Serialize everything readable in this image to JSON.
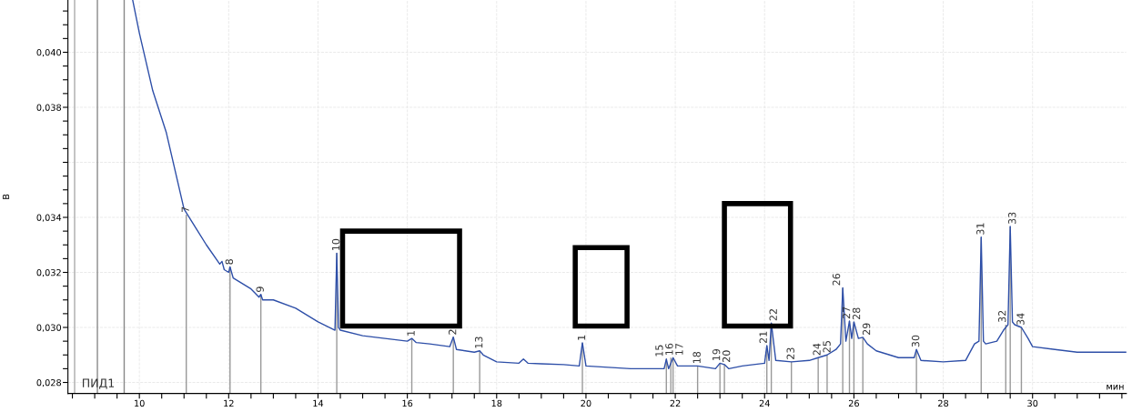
{
  "chart_data": {
    "type": "line",
    "ylabel": "В",
    "xlabel": "мин",
    "xlim": [
      8.4,
      32.1
    ],
    "ylim": [
      0.0276,
      0.0419
    ],
    "xticks": [
      {
        "value": 8.5,
        "label": null
      },
      {
        "value": 9,
        "label": null
      },
      {
        "value": 9.5,
        "label": null
      },
      10,
      {
        "value": 10.5,
        "label": null
      },
      {
        "value": 11,
        "label": null
      },
      {
        "value": 11.5,
        "label": null
      },
      12,
      {
        "value": 12.5,
        "label": null
      },
      {
        "value": 13,
        "label": null
      },
      {
        "value": 13.5,
        "label": null
      },
      14,
      {
        "value": 14.5,
        "label": null
      },
      {
        "value": 15,
        "label": null
      },
      {
        "value": 15.5,
        "label": null
      },
      16,
      {
        "value": 16.5,
        "label": null
      },
      {
        "value": 17,
        "label": null
      },
      {
        "value": 17.5,
        "label": null
      },
      18,
      {
        "value": 18.5,
        "label": null
      },
      {
        "value": 19,
        "label": null
      },
      {
        "value": 19.5,
        "label": null
      },
      20,
      {
        "value": 20.5,
        "label": null
      },
      {
        "value": 21,
        "label": null
      },
      {
        "value": 21.5,
        "label": null
      },
      22,
      {
        "value": 22.5,
        "label": null
      },
      {
        "value": 23,
        "label": null
      },
      {
        "value": 23.5,
        "label": null
      },
      24,
      {
        "value": 24.5,
        "label": null
      },
      {
        "value": 25,
        "label": null
      },
      {
        "value": 25.5,
        "label": null
      },
      26,
      {
        "value": 26.5,
        "label": null
      },
      {
        "value": 27,
        "label": null
      },
      {
        "value": 27.5,
        "label": null
      },
      28,
      {
        "value": 28.5,
        "label": null
      },
      {
        "value": 29,
        "label": null
      },
      {
        "value": 29.5,
        "label": null
      },
      30,
      {
        "value": 30.5,
        "label": null
      },
      {
        "value": 31,
        "label": null
      },
      {
        "value": 31.5,
        "label": null
      },
      {
        "value": 32,
        "label": null
      }
    ],
    "yticks": [
      {
        "value": 0.028,
        "label": "0,028"
      },
      {
        "value": 0.0285,
        "label": null
      },
      {
        "value": 0.029,
        "label": null
      },
      {
        "value": 0.0295,
        "label": null
      },
      {
        "value": 0.03,
        "label": "0,030"
      },
      {
        "value": 0.0305,
        "label": null
      },
      {
        "value": 0.031,
        "label": null
      },
      {
        "value": 0.0315,
        "label": null
      },
      {
        "value": 0.032,
        "label": "0,032"
      },
      {
        "value": 0.0325,
        "label": null
      },
      {
        "value": 0.033,
        "label": null
      },
      {
        "value": 0.0335,
        "label": null
      },
      {
        "value": 0.034,
        "label": "0,034"
      },
      {
        "value": 0.0345,
        "label": null
      },
      {
        "value": 0.035,
        "label": null
      },
      {
        "value": 0.0355,
        "label": null
      },
      {
        "value": 0.036,
        "label": null
      },
      {
        "value": 0.0365,
        "label": null
      },
      {
        "value": 0.037,
        "label": null
      },
      {
        "value": 0.0375,
        "label": null
      },
      {
        "value": 0.038,
        "label": "0,038"
      },
      {
        "value": 0.0385,
        "label": null
      },
      {
        "value": 0.039,
        "label": null
      },
      {
        "value": 0.0395,
        "label": null
      },
      {
        "value": 0.04,
        "label": "0,040"
      },
      {
        "value": 0.0405,
        "label": null
      },
      {
        "value": 0.041,
        "label": null
      },
      {
        "value": 0.0415,
        "label": null
      }
    ],
    "grid": true,
    "series": [
      {
        "color": "#2e4fa8",
        "x": [
          9.85,
          10.0,
          10.3,
          10.6,
          11.0,
          11.5,
          11.8,
          11.85,
          11.9,
          12.0,
          12.03,
          12.1,
          12.5,
          12.68,
          12.72,
          12.76,
          13.0,
          13.5,
          14.0,
          14.38,
          14.42,
          14.46,
          14.5,
          15.0,
          15.5,
          16.0,
          16.1,
          16.2,
          16.5,
          16.95,
          17.03,
          17.1,
          17.5,
          17.62,
          17.7,
          18.0,
          18.5,
          18.6,
          18.7,
          19.0,
          19.5,
          19.85,
          19.92,
          20.0,
          20.5,
          21.0,
          21.5,
          21.75,
          21.8,
          21.85,
          21.95,
          22.05,
          22.5,
          22.9,
          23.0,
          23.1,
          23.2,
          23.5,
          24.0,
          24.05,
          24.1,
          24.15,
          24.25,
          24.6,
          25.0,
          25.2,
          25.4,
          25.6,
          25.7,
          25.75,
          25.82,
          25.9,
          25.95,
          26.0,
          26.1,
          26.2,
          26.3,
          26.5,
          27.0,
          27.35,
          27.4,
          27.5,
          28.0,
          28.5,
          28.7,
          28.8,
          28.85,
          28.9,
          28.95,
          29.2,
          29.35,
          29.4,
          29.45,
          29.5,
          29.55,
          29.6,
          29.75,
          29.9,
          30.0,
          30.5,
          31.0,
          31.5,
          32.1
        ],
        "values": [
          0.0419,
          0.0407,
          0.0386,
          0.0371,
          0.0343,
          0.033,
          0.0323,
          0.0324,
          0.0321,
          0.032,
          0.0322,
          0.0318,
          0.0314,
          0.0311,
          0.0312,
          0.031,
          0.031,
          0.0307,
          0.0302,
          0.0299,
          0.0327,
          0.03,
          0.0299,
          0.0297,
          0.0296,
          0.0295,
          0.0296,
          0.02945,
          0.0294,
          0.0293,
          0.02965,
          0.0292,
          0.0291,
          0.02915,
          0.029,
          0.02875,
          0.0287,
          0.02885,
          0.0287,
          0.02868,
          0.02865,
          0.0286,
          0.02944,
          0.0286,
          0.02855,
          0.0285,
          0.0285,
          0.0285,
          0.02885,
          0.0285,
          0.0289,
          0.0286,
          0.0286,
          0.0285,
          0.0287,
          0.02865,
          0.0285,
          0.0286,
          0.0287,
          0.02934,
          0.0288,
          0.03016,
          0.0288,
          0.02875,
          0.0288,
          0.0289,
          0.029,
          0.0292,
          0.0294,
          0.03144,
          0.0295,
          0.03023,
          0.0296,
          0.0302,
          0.0296,
          0.02964,
          0.0294,
          0.02915,
          0.0289,
          0.0289,
          0.0292,
          0.0288,
          0.02875,
          0.0288,
          0.0294,
          0.0295,
          0.03328,
          0.0295,
          0.0294,
          0.0295,
          0.0299,
          0.03,
          0.0301,
          0.03367,
          0.0302,
          0.0301,
          0.03,
          0.0296,
          0.0293,
          0.0292,
          0.0291,
          0.0291,
          0.0291
        ]
      }
    ],
    "ref_lines": [
      {
        "axis": "x",
        "value": 8.55,
        "color": "#aaaaaa"
      },
      {
        "axis": "x",
        "value": 9.06,
        "color": "#888888"
      },
      {
        "axis": "x",
        "value": 9.66,
        "color": "#888888"
      }
    ],
    "annotations": [
      "ПИД1",
      {
        "text": "7",
        "x": 11.05,
        "y": 0.0341
      },
      {
        "text": "8",
        "x": 12.03,
        "y": 0.0322
      },
      {
        "text": "9",
        "x": 12.72,
        "y": 0.0312
      },
      {
        "text": "10",
        "x": 14.42,
        "y": 0.0327
      },
      {
        "text": "1",
        "x": 16.1,
        "y": 0.0296
      },
      {
        "text": "2",
        "x": 17.03,
        "y": 0.02965
      },
      {
        "text": "13",
        "x": 17.62,
        "y": 0.02915
      },
      {
        "text": "1",
        "x": 19.92,
        "y": 0.02944
      },
      {
        "text": "15",
        "x": 21.8,
        "y": 0.02885
      },
      {
        "text": "16",
        "x": 21.9,
        "y": 0.0289
      },
      {
        "text": "17",
        "x": 21.95,
        "y": 0.0289
      },
      {
        "text": "18",
        "x": 22.5,
        "y": 0.0286
      },
      {
        "text": "19",
        "x": 23.0,
        "y": 0.0287
      },
      {
        "text": "20",
        "x": 23.1,
        "y": 0.02865
      },
      {
        "text": "21",
        "x": 24.05,
        "y": 0.02934
      },
      {
        "text": "22",
        "x": 24.15,
        "y": 0.03016
      },
      {
        "text": "23",
        "x": 24.6,
        "y": 0.02875
      },
      {
        "text": "24",
        "x": 25.2,
        "y": 0.0289
      },
      {
        "text": "25",
        "x": 25.4,
        "y": 0.029
      },
      {
        "text": "26",
        "x": 25.75,
        "y": 0.03144
      },
      {
        "text": "27",
        "x": 25.9,
        "y": 0.03023
      },
      {
        "text": "28",
        "x": 26.0,
        "y": 0.0302
      },
      {
        "text": "29",
        "x": 26.2,
        "y": 0.02964
      },
      {
        "text": "30",
        "x": 27.4,
        "y": 0.0292
      },
      {
        "text": "31",
        "x": 28.85,
        "y": 0.03328
      },
      {
        "text": "32",
        "x": 29.4,
        "y": 0.0301
      },
      {
        "text": "33",
        "x": 29.5,
        "y": 0.03367
      },
      {
        "text": "34",
        "x": 29.75,
        "y": 0.03
      }
    ]
  }
}
